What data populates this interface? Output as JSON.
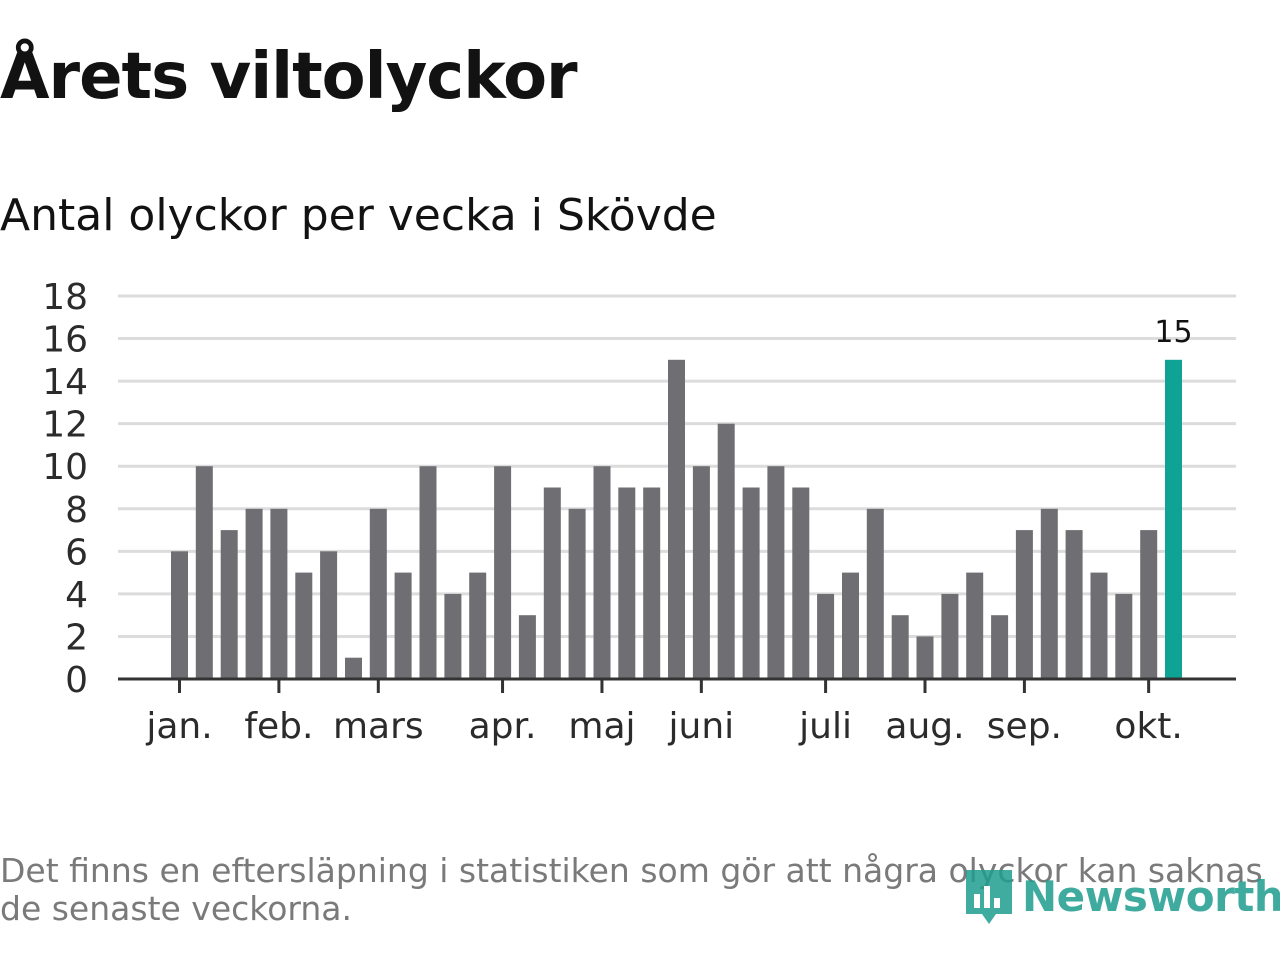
{
  "title": "Årets viltolyckor",
  "subtitle": "Antal olyckor per vecka i Skövde",
  "footnote": "Det finns en eftersläpning i statistiken som gör att några olyckor kan saknas de senaste veckorna.",
  "logo": {
    "text": "Newsworthy",
    "icon": "newsworthy-bar-chart-icon"
  },
  "colors": {
    "bar": "#6f6e73",
    "highlight": "#0fa396",
    "grid": "#dcdcdc",
    "axis": "#333333"
  },
  "chart_data": {
    "type": "bar",
    "title": "Antal olyckor per vecka i Skövde",
    "xlabel": "",
    "ylabel": "",
    "ylim": [
      0,
      18
    ],
    "yticks": [
      0,
      2,
      4,
      6,
      8,
      10,
      12,
      14,
      16,
      18
    ],
    "grid": true,
    "values": [
      6,
      10,
      7,
      8,
      8,
      5,
      6,
      1,
      8,
      5,
      10,
      4,
      5,
      10,
      3,
      9,
      8,
      10,
      9,
      9,
      15,
      10,
      12,
      9,
      10,
      9,
      4,
      5,
      8,
      3,
      2,
      4,
      5,
      3,
      7,
      8,
      7,
      5,
      4,
      7,
      15
    ],
    "highlight_index": 40,
    "highlight_label": "15",
    "month_labels": [
      {
        "label": "jan.",
        "bar_index": 0
      },
      {
        "label": "feb.",
        "bar_index": 4
      },
      {
        "label": "mars",
        "bar_index": 8
      },
      {
        "label": "apr.",
        "bar_index": 13
      },
      {
        "label": "maj",
        "bar_index": 17
      },
      {
        "label": "juni",
        "bar_index": 21
      },
      {
        "label": "juli",
        "bar_index": 26
      },
      {
        "label": "aug.",
        "bar_index": 30
      },
      {
        "label": "sep.",
        "bar_index": 34
      },
      {
        "label": "okt.",
        "bar_index": 39
      }
    ]
  }
}
